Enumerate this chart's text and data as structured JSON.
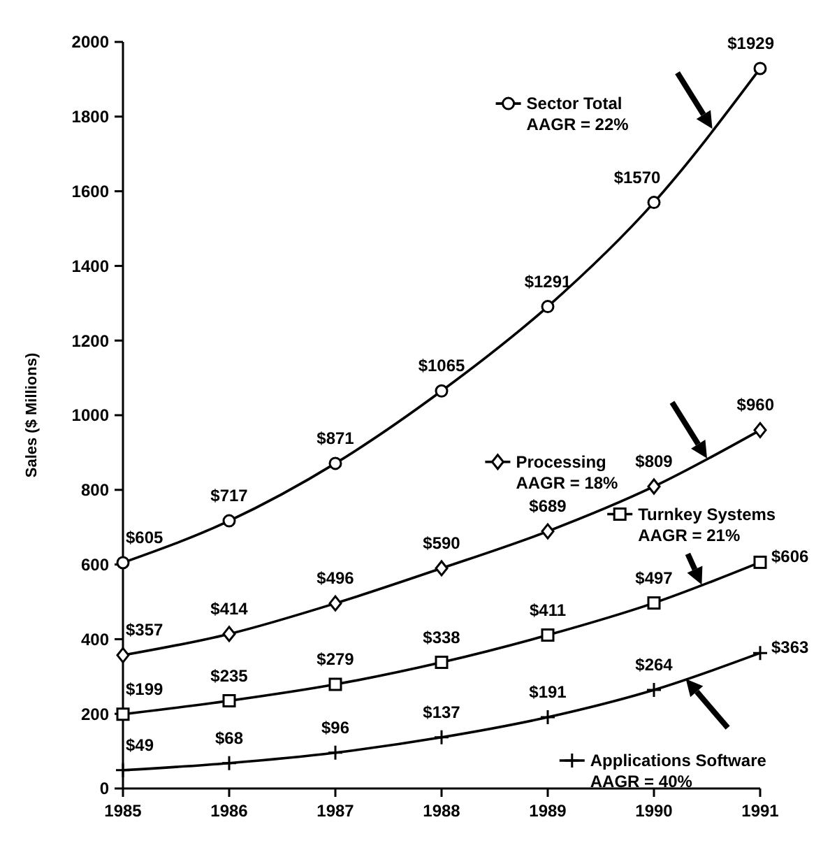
{
  "chart_data": {
    "type": "line",
    "ylabel": "Sales ($ Millions)",
    "x": [
      1985,
      1986,
      1987,
      1988,
      1989,
      1990,
      1991
    ],
    "xlim": [
      1985,
      1991
    ],
    "xticks": [
      1985,
      1986,
      1987,
      1988,
      1989,
      1990,
      1991
    ],
    "ylim": [
      0,
      2000
    ],
    "yticks": [
      0,
      200,
      400,
      600,
      800,
      1000,
      1200,
      1400,
      1600,
      1800,
      2000
    ],
    "grid": false,
    "legend": "right",
    "series": [
      {
        "name": "Sector Total",
        "color": "#000000",
        "marker": "circle",
        "values": [
          605,
          717,
          871,
          1065,
          1291,
          1570,
          1929
        ],
        "value_labels": [
          "$605",
          "$717",
          "$871",
          "$1065",
          "$1291",
          "$1570",
          "$1929"
        ]
      },
      {
        "name": "Processing",
        "color": "#000000",
        "marker": "diamond",
        "values": [
          357,
          414,
          496,
          590,
          689,
          809,
          960
        ],
        "value_labels": [
          "$357",
          "$414",
          "$496",
          "$590",
          "$689",
          "$809",
          "$960"
        ]
      },
      {
        "name": "Turnkey Systems",
        "color": "#000000",
        "marker": "square",
        "values": [
          199,
          235,
          279,
          338,
          411,
          497,
          606
        ],
        "value_labels": [
          "$199",
          "$235",
          "$279",
          "$338",
          "$411",
          "$497",
          "$606"
        ]
      },
      {
        "name": "Applications Software",
        "color": "#000000",
        "marker": "cross",
        "values": [
          49,
          68,
          96,
          137,
          191,
          264,
          363
        ],
        "value_labels": [
          "$49",
          "$68",
          "$96",
          "$137",
          "$191",
          "$264",
          "$363"
        ]
      }
    ],
    "annotations": [
      "AAGR = 22%",
      "AAGR = 18%",
      "AAGR = 21%",
      "AAGR = 40%"
    ]
  }
}
